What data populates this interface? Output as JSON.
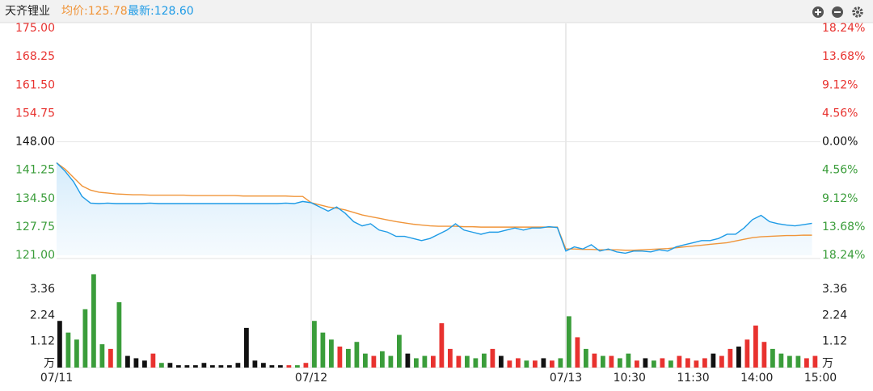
{
  "chart_data": {
    "type": "line",
    "title": "天齐锂业",
    "x": [
      0,
      1,
      2,
      3,
      4,
      5,
      6,
      7,
      8,
      9,
      10,
      11,
      12,
      13,
      14,
      15,
      16,
      17,
      18,
      19,
      20,
      21,
      22,
      23,
      24,
      25,
      26,
      27,
      28,
      29,
      30,
      31,
      32,
      33,
      34,
      35,
      36,
      37,
      38,
      39,
      40,
      41,
      42,
      43,
      44,
      45,
      46,
      47,
      48,
      49,
      50,
      51,
      52,
      53,
      54,
      55,
      56,
      57,
      58,
      59,
      60,
      61,
      62,
      63,
      64,
      65,
      66,
      67,
      68,
      69,
      70,
      71,
      72,
      73,
      74,
      75,
      76,
      77,
      78,
      79,
      80,
      81,
      82,
      83,
      84,
      85,
      86,
      87,
      88,
      89
    ],
    "xlim": [
      0,
      90
    ],
    "xticks": [
      {
        "value": 0,
        "label": "07/11"
      },
      {
        "value": 30,
        "label": "07/12"
      },
      {
        "value": 60,
        "label": "07/13"
      },
      {
        "value": 67.5,
        "label": "10:30"
      },
      {
        "value": 75,
        "label": "11:30"
      },
      {
        "value": 82.5,
        "label": "14:00"
      },
      {
        "value": 90,
        "label": "15:00"
      }
    ],
    "ylim": [
      121,
      175
    ],
    "yticks": [
      {
        "value": 175,
        "label": "175.00"
      },
      168.25,
      {
        "value": 161.5,
        "label": "161.50"
      },
      154.75,
      {
        "value": 148,
        "label": "148.00"
      },
      141.25,
      {
        "value": 134.5,
        "label": "134.50"
      },
      127.75,
      {
        "value": 121,
        "label": "121.00"
      }
    ],
    "y2lim": [
      -18.24,
      18.24
    ],
    "y2ticks": [
      {
        "value": 18.24,
        "label": "18.24%"
      },
      {
        "value": 13.68,
        "label": "13.68%"
      },
      {
        "value": 9.12,
        "label": "9.12%"
      },
      {
        "value": 4.56,
        "label": "4.56%"
      },
      {
        "value": 0,
        "label": "0.00%"
      },
      {
        "value": -4.56,
        "label": "4.56%"
      },
      {
        "value": -9.12,
        "label": "9.12%"
      },
      {
        "value": -13.68,
        "label": "13.68%"
      },
      {
        "value": -18.24,
        "label": "18.24%"
      }
    ],
    "up_color": "#e8322f",
    "down_color": "#3a9d3a",
    "flat_color": "#111111",
    "series": [
      {
        "name": "均价:125.78",
        "color": "#f0953a",
        "values": [
          143,
          141.5,
          139.5,
          137.5,
          136.5,
          136,
          135.8,
          135.6,
          135.5,
          135.4,
          135.4,
          135.3,
          135.3,
          135.3,
          135.3,
          135.3,
          135.2,
          135.2,
          135.2,
          135.2,
          135.2,
          135.2,
          135.1,
          135.1,
          135.1,
          135.1,
          135.1,
          135.1,
          135,
          135,
          133.5,
          133,
          132.5,
          132.2,
          131.8,
          131.2,
          130.6,
          130.2,
          129.8,
          129.4,
          129,
          128.7,
          128.4,
          128.2,
          128,
          127.9,
          127.9,
          127.9,
          127.8,
          127.8,
          127.7,
          127.7,
          127.7,
          127.7,
          127.7,
          127.7,
          127.7,
          127.7,
          127.7,
          127.7,
          122.5,
          122.5,
          122.4,
          122.4,
          122.3,
          122.3,
          122.3,
          122.2,
          122.2,
          122.3,
          122.4,
          122.5,
          122.6,
          122.8,
          123,
          123.2,
          123.4,
          123.6,
          123.8,
          124,
          124.4,
          124.8,
          125.2,
          125.4,
          125.5,
          125.6,
          125.7,
          125.7,
          125.8,
          125.78
        ]
      },
      {
        "name": "最新:128.60",
        "color": "#1e9be6",
        "values": [
          143,
          141,
          138.5,
          135,
          133.4,
          133.3,
          133.4,
          133.3,
          133.3,
          133.3,
          133.3,
          133.4,
          133.3,
          133.3,
          133.3,
          133.3,
          133.3,
          133.3,
          133.3,
          133.3,
          133.3,
          133.3,
          133.3,
          133.3,
          133.3,
          133.3,
          133.3,
          133.4,
          133.3,
          133.8,
          133.5,
          132.5,
          131.5,
          132.5,
          131,
          129,
          128,
          128.5,
          127,
          126.5,
          125.5,
          125.5,
          125,
          124.5,
          125,
          126,
          127,
          128.5,
          127,
          126.5,
          126,
          126.5,
          126.5,
          127,
          127.5,
          127,
          127.5,
          127.5,
          127.8,
          127.6,
          122,
          123,
          122.5,
          123.5,
          122,
          122.5,
          121.8,
          121.5,
          122,
          122,
          121.8,
          122.3,
          122,
          123,
          123.5,
          124,
          124.5,
          124.5,
          125,
          126,
          126,
          127.5,
          129.5,
          130.5,
          129,
          128.5,
          128.2,
          128,
          128.3,
          128.6
        ]
      }
    ],
    "volume": {
      "values": [
        2.0,
        1.5,
        1.2,
        2.5,
        4.0,
        1.0,
        0.8,
        2.8,
        0.5,
        0.4,
        0.3,
        0.6,
        0.2,
        0.2,
        0.1,
        0.1,
        0.1,
        0.2,
        0.1,
        0.1,
        0.1,
        0.2,
        1.7,
        0.3,
        0.2,
        0.1,
        0.1,
        0.1,
        0.1,
        0.2,
        2.0,
        1.5,
        1.2,
        0.9,
        0.8,
        1.1,
        0.6,
        0.5,
        0.7,
        0.5,
        1.4,
        0.6,
        0.4,
        0.5,
        0.5,
        1.9,
        0.8,
        0.5,
        0.5,
        0.4,
        0.6,
        0.8,
        0.5,
        0.3,
        0.4,
        0.3,
        0.3,
        0.4,
        0.3,
        0.4,
        2.2,
        1.3,
        0.8,
        0.6,
        0.5,
        0.5,
        0.4,
        0.6,
        0.3,
        0.4,
        0.3,
        0.4,
        0.3,
        0.5,
        0.4,
        0.3,
        0.4,
        0.6,
        0.5,
        0.8,
        0.9,
        1.2,
        1.8,
        1.1,
        0.8,
        0.6,
        0.5,
        0.5,
        0.4,
        0.5
      ],
      "ylim": [
        0,
        4.5
      ],
      "yticks": [
        1.12,
        2.24,
        3.36
      ],
      "unit": "万"
    }
  }
}
